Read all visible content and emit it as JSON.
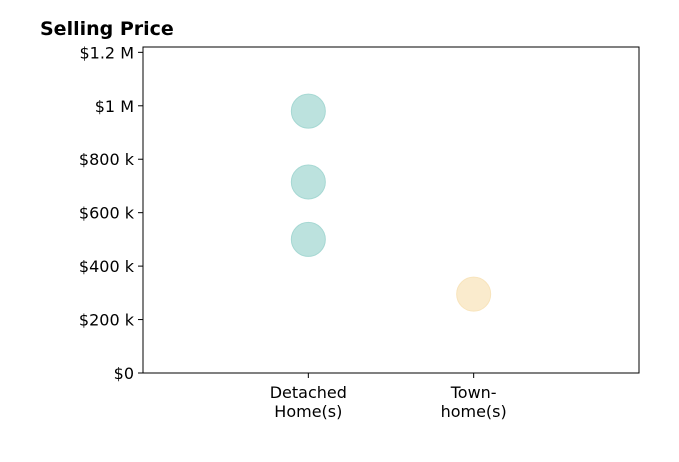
{
  "chart_data": {
    "type": "scatter",
    "title": "Selling Price",
    "xlabel": "",
    "ylabel": "",
    "categories": [
      {
        "lines": [
          "Detached",
          "Home(s)"
        ]
      },
      {
        "lines": [
          "Town-",
          "home(s)"
        ]
      }
    ],
    "xlim": [
      -1,
      2
    ],
    "ylim": [
      0,
      1220000
    ],
    "yticks": [
      {
        "value": 0,
        "label": "$0"
      },
      {
        "value": 200000,
        "label": "$200 k"
      },
      {
        "value": 400000,
        "label": "$400 k"
      },
      {
        "value": 600000,
        "label": "$600 k"
      },
      {
        "value": 800000,
        "label": "$800 k"
      },
      {
        "value": 1000000,
        "label": "$1 M"
      },
      {
        "value": 1200000,
        "label": "$1.2 M"
      }
    ],
    "points": [
      {
        "category": 0,
        "value": 980000,
        "color": "#a6d8d3"
      },
      {
        "category": 0,
        "value": 715000,
        "color": "#a6d8d3"
      },
      {
        "category": 0,
        "value": 500000,
        "color": "#a6d8d3"
      },
      {
        "category": 1,
        "value": 295000,
        "color": "#f8e4bc"
      }
    ],
    "grid": false,
    "legend": "none"
  }
}
